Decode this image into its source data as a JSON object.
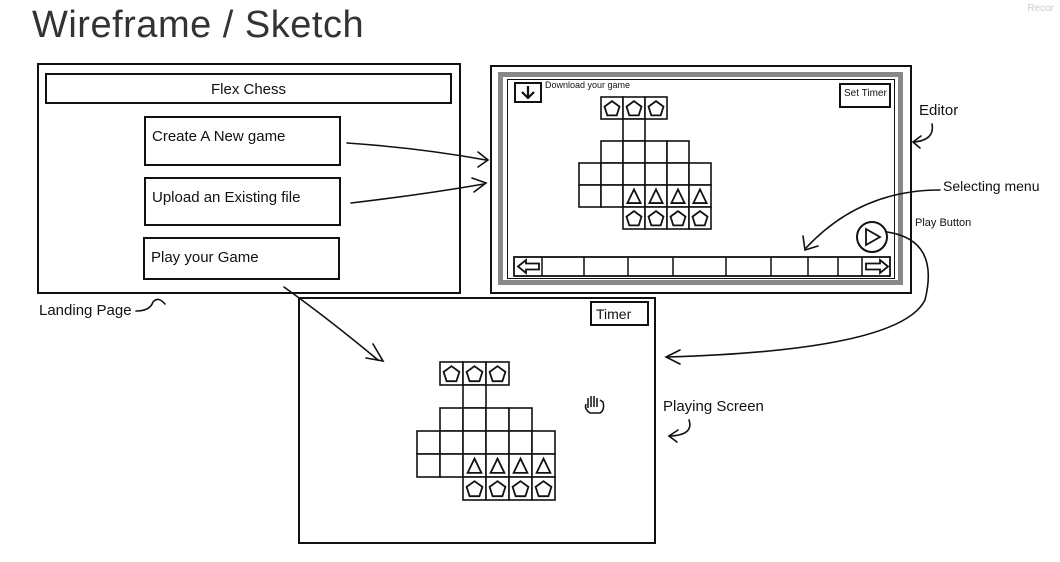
{
  "title": "Wireframe / Sketch",
  "corner_text": "Recor",
  "landing": {
    "header": "Flex Chess",
    "buttons": [
      "Create A New game",
      "Upload an Existing file",
      "Play your Game"
    ],
    "caption": "Landing Page"
  },
  "editor": {
    "download_label": "Download your game",
    "set_timer_label": "Set Timer",
    "caption": "Editor",
    "play_caption": "Play Button",
    "menu_caption": "Selecting menu"
  },
  "playing": {
    "timer_label": "Timer",
    "caption": "Playing Screen"
  },
  "icons": {
    "download": "down-arrow-icon",
    "play": "play-icon",
    "left": "left-arrow-icon",
    "right": "right-arrow-icon",
    "hand": "hand-cursor-icon"
  }
}
